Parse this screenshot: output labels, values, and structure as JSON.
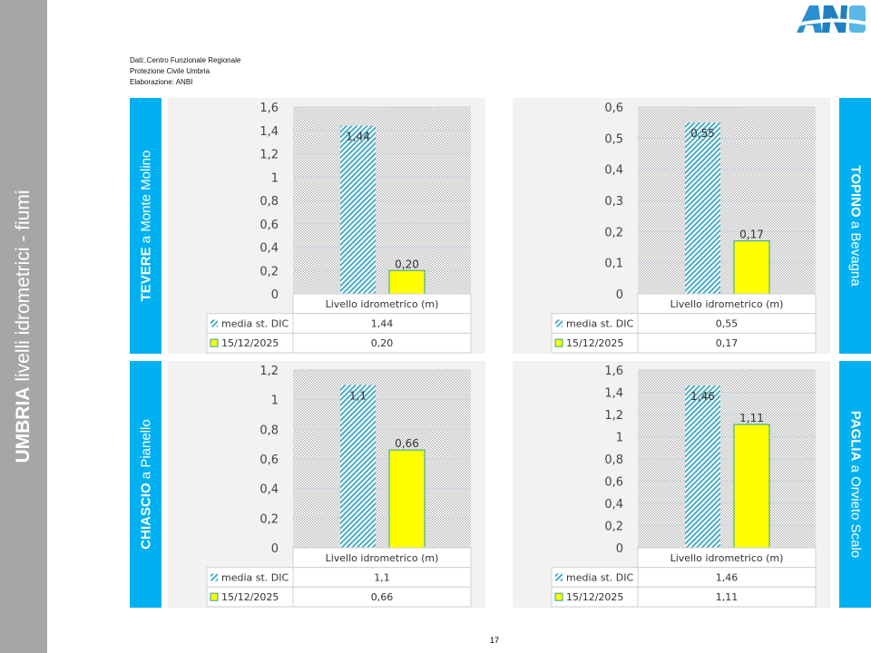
{
  "sidebar": {
    "title_bold": "UMBRIA",
    "title_rest": " livelli idrometrici - fiumi"
  },
  "logo": {
    "text": "ANBI"
  },
  "source": {
    "lines": [
      "Dati:.Centro Funzionale Regionale",
      "Protezione Civile Umbria",
      "Elaborazione: ANBI"
    ]
  },
  "page_number": "17",
  "colors": {
    "accent": "#00b0f0",
    "media_bar": "#4bacc6",
    "current_bar": "#ffff00",
    "sidebar": "#a6a6a6"
  },
  "chart_data": [
    {
      "type": "bar",
      "station_bold": "TEVERE",
      "station_rest": " a Monte Molino",
      "category": "Livello idrometrico (m)",
      "ylim": [
        0,
        1.6
      ],
      "ticks": [
        "0",
        "0,2",
        "0,4",
        "0,6",
        "0,8",
        "1",
        "1,2",
        "1,4",
        "1,6"
      ],
      "series": [
        {
          "name": "media st. DIC",
          "value": 1.44,
          "label": "1,44"
        },
        {
          "name": "15/12/2025",
          "value": 0.2,
          "label": "0,20"
        }
      ]
    },
    {
      "type": "bar",
      "station_bold": "TOPINO",
      "station_rest": " a Bevagna",
      "category": "Livello idrometrico (m)",
      "ylim": [
        0,
        0.6
      ],
      "ticks": [
        "0",
        "0,1",
        "0,2",
        "0,3",
        "0,4",
        "0,5",
        "0,6"
      ],
      "series": [
        {
          "name": "media st. DIC",
          "value": 0.55,
          "label": "0,55"
        },
        {
          "name": "15/12/2025",
          "value": 0.17,
          "label": "0,17"
        }
      ]
    },
    {
      "type": "bar",
      "station_bold": "CHIASCIO",
      "station_rest": " a Pianello",
      "category": "Livello idrometrico (m)",
      "ylim": [
        0,
        1.2
      ],
      "ticks": [
        "0",
        "0,2",
        "0,4",
        "0,6",
        "0,8",
        "1",
        "1,2"
      ],
      "series": [
        {
          "name": "media st. DIC",
          "value": 1.1,
          "label": "1,1"
        },
        {
          "name": "15/12/2025",
          "value": 0.66,
          "label": "0,66"
        }
      ]
    },
    {
      "type": "bar",
      "station_bold": "PAGLIA",
      "station_rest": " a Orvieto Scalo",
      "category": "Livello idrometrico (m)",
      "ylim": [
        0,
        1.6
      ],
      "ticks": [
        "0",
        "0,2",
        "0,4",
        "0,6",
        "0,8",
        "1",
        "1,2",
        "1,4",
        "1,6"
      ],
      "series": [
        {
          "name": "media st. DIC",
          "value": 1.46,
          "label": "1,46"
        },
        {
          "name": "15/12/2025",
          "value": 1.11,
          "label": "1,11"
        }
      ]
    }
  ]
}
